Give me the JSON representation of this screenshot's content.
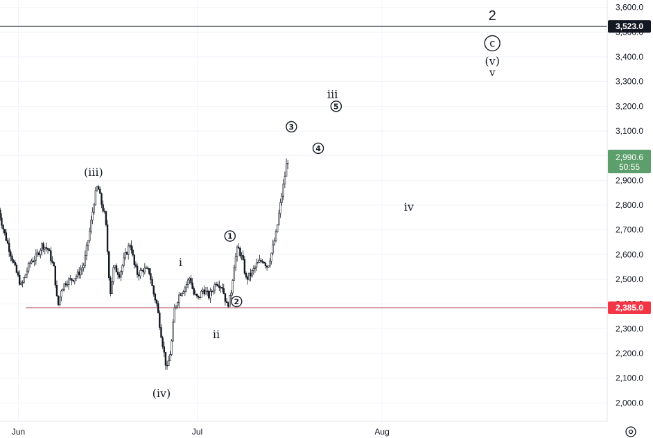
{
  "colors": {
    "up": "#26a69a",
    "down": "#ef5350",
    "candle": "#131722",
    "grid": "#f0f3fa",
    "axis": "#131722",
    "support": "#b2404f",
    "support_label": "#f23645",
    "current_label": "#5c9e6c",
    "resistance_label": "#131722"
  },
  "chart_data": {
    "type": "candlestick",
    "title": "",
    "xlabel": "",
    "ylabel": "",
    "ylim": [
      1925,
      3630
    ],
    "y_ticks": [
      2000,
      2100,
      2200,
      2300,
      2400,
      2500,
      2600,
      2700,
      2800,
      2900,
      3000,
      3100,
      3200,
      3300,
      3400,
      3500,
      3600
    ],
    "y_tick_labels": [
      "2,000.0",
      "2,100.0",
      "2,200.0",
      "2,300.0",
      "2,400.0",
      "2,500.0",
      "2,600.0",
      "2,700.0",
      "2,800.0",
      "2,900.0",
      "3,000.0",
      "3,100.0",
      "3,200.0",
      "3,300.0",
      "3,400.0",
      "3,500.0",
      "3,600.0"
    ],
    "x_ticks": [
      {
        "label": "Jun",
        "day": 0
      },
      {
        "label": "Jul",
        "day": 30
      },
      {
        "label": "Aug",
        "day": 61
      }
    ],
    "horizontal_lines": [
      {
        "value": 3523.0,
        "label": "3,523.0",
        "style": "resistance"
      },
      {
        "value": 2385.0,
        "label": "2,385.0",
        "style": "support"
      }
    ],
    "current_price": {
      "value": 2990.6,
      "label": "2,990.6",
      "countdown": "50:55"
    },
    "price_path": [
      [
        -3.3,
        2780
      ],
      [
        -2.5,
        2700
      ],
      [
        -1.5,
        2620
      ],
      [
        -0.5,
        2540
      ],
      [
        0.5,
        2470
      ],
      [
        1.2,
        2520
      ],
      [
        2,
        2570
      ],
      [
        3,
        2590
      ],
      [
        4,
        2640
      ],
      [
        5,
        2620
      ],
      [
        6,
        2540
      ],
      [
        6.6,
        2385
      ],
      [
        7.2,
        2460
      ],
      [
        8,
        2490
      ],
      [
        9,
        2500
      ],
      [
        10,
        2520
      ],
      [
        11,
        2560
      ],
      [
        12,
        2700
      ],
      [
        12.8,
        2830
      ],
      [
        13.3,
        2880
      ],
      [
        14,
        2800
      ],
      [
        14.6,
        2750
      ],
      [
        15.4,
        2440
      ],
      [
        16,
        2550
      ],
      [
        17,
        2520
      ],
      [
        18,
        2600
      ],
      [
        18.8,
        2650
      ],
      [
        19.4,
        2560
      ],
      [
        20,
        2520
      ],
      [
        21,
        2540
      ],
      [
        22,
        2530
      ],
      [
        22.6,
        2450
      ],
      [
        23.2,
        2400
      ],
      [
        24,
        2270
      ],
      [
        24.9,
        2130
      ],
      [
        25.6,
        2220
      ],
      [
        26.2,
        2380
      ],
      [
        27,
        2440
      ],
      [
        28,
        2470
      ],
      [
        28.8,
        2510
      ],
      [
        29.4,
        2440
      ],
      [
        30.2,
        2420
      ],
      [
        31,
        2460
      ],
      [
        32,
        2430
      ],
      [
        33.2,
        2490
      ],
      [
        34.2,
        2470
      ],
      [
        35,
        2390
      ],
      [
        35.6,
        2430
      ],
      [
        36.2,
        2560
      ],
      [
        36.8,
        2630
      ],
      [
        37.6,
        2580
      ],
      [
        38.2,
        2500
      ],
      [
        39,
        2520
      ],
      [
        40,
        2560
      ],
      [
        41,
        2580
      ],
      [
        41.8,
        2550
      ],
      [
        42.5,
        2610
      ],
      [
        43.2,
        2680
      ],
      [
        43.8,
        2780
      ],
      [
        44.4,
        2870
      ],
      [
        45,
        2970
      ],
      [
        45.4,
        2990.6
      ]
    ],
    "annotations": [
      {
        "text": "2",
        "day": 79.5,
        "price": 3565,
        "kind": "big"
      },
      {
        "text": "c",
        "day": 79.5,
        "price": 3455,
        "kind": "circle-big"
      },
      {
        "text": "(v)",
        "day": 79.5,
        "price": 3385,
        "kind": "wave"
      },
      {
        "text": "v",
        "day": 79.5,
        "price": 3340,
        "kind": "wave-small"
      },
      {
        "text": "iii",
        "day": 52.7,
        "price": 3250,
        "kind": "wave"
      },
      {
        "text": "5",
        "day": 53.3,
        "price": 3200,
        "kind": "circle"
      },
      {
        "text": "3",
        "day": 45.8,
        "price": 3117,
        "kind": "circle"
      },
      {
        "text": "4",
        "day": 50.3,
        "price": 3030,
        "kind": "circle"
      },
      {
        "text": "(iii)",
        "day": 12.6,
        "price": 2935,
        "kind": "wave"
      },
      {
        "text": "iv",
        "day": 65.5,
        "price": 2795,
        "kind": "wave"
      },
      {
        "text": "1",
        "day": 35.5,
        "price": 2675,
        "kind": "circle"
      },
      {
        "text": "i",
        "day": 27.2,
        "price": 2570,
        "kind": "wave"
      },
      {
        "text": "2",
        "day": 36.6,
        "price": 2410,
        "kind": "circle"
      },
      {
        "text": "ii",
        "day": 33.2,
        "price": 2278,
        "kind": "wave"
      },
      {
        "text": "(iv)",
        "day": 24.0,
        "price": 2040,
        "kind": "wave"
      }
    ]
  }
}
